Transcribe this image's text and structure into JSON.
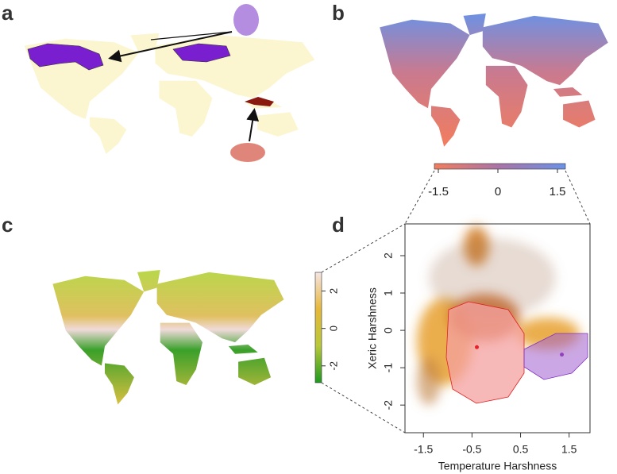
{
  "panel_labels": [
    "a",
    "b",
    "c",
    "d"
  ],
  "colorbar_b": {
    "type": "colorbar",
    "lim": [
      -1.6,
      1.7
    ],
    "ticks": [
      -1.5,
      0,
      1.5
    ],
    "colors": [
      "#f27d5e",
      "#a874a8",
      "#6b92e6"
    ]
  },
  "colorbar_c": {
    "type": "colorbar",
    "lim": [
      -2.9,
      3.0
    ],
    "ticks": [
      -2,
      0,
      2
    ],
    "colors": [
      "#1d9a1d",
      "#b8c83a",
      "#e6b83a",
      "#f5e4e4"
    ]
  },
  "chart_data": {
    "type": "scatter",
    "x_label": "Temperature Harshness",
    "y_label": "Xeric Harshness",
    "xlim": [
      -1.88,
      1.93
    ],
    "ylim": [
      -2.74,
      2.85
    ],
    "xticks": [
      -1.5,
      -0.5,
      0.5,
      1.5
    ],
    "yticks": [
      -2,
      -1,
      0,
      1,
      2
    ],
    "series": [
      {
        "color": "#e8202a",
        "x": [
          -0.4
        ],
        "values": [
          -0.45
        ]
      },
      {
        "color": "#9040c0",
        "x": [
          1.35
        ],
        "values": [
          -0.65
        ]
      }
    ]
  }
}
